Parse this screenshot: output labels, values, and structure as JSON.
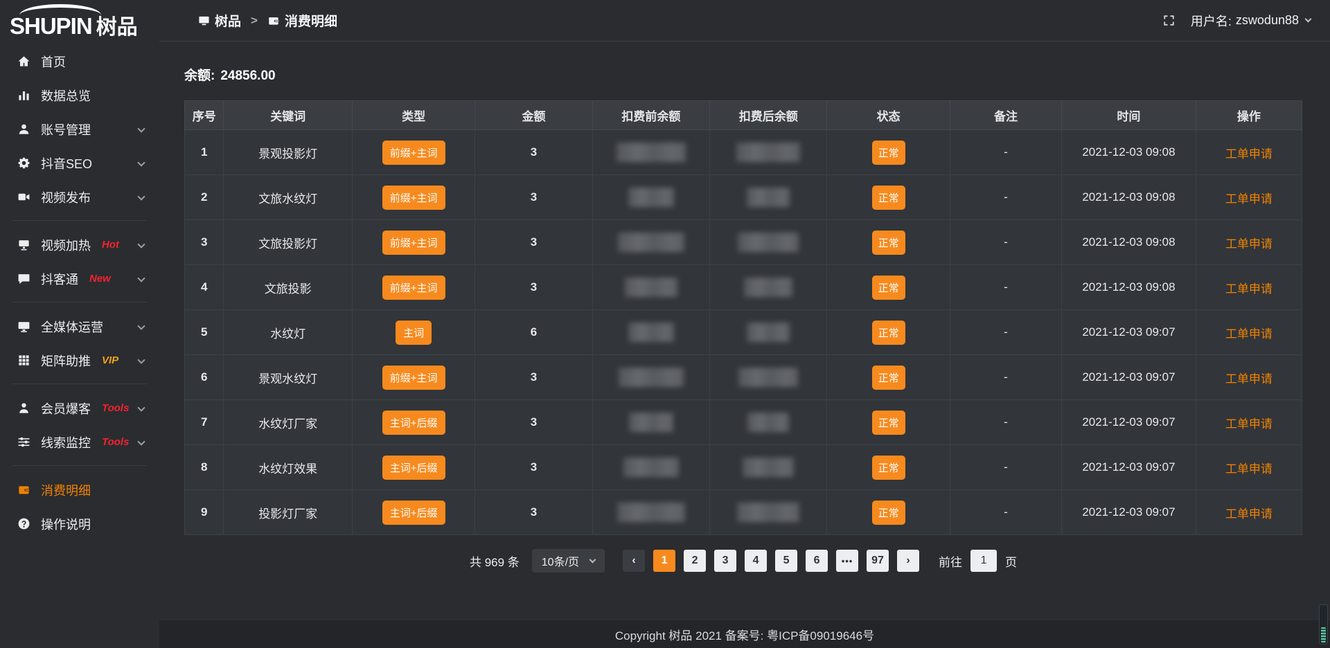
{
  "logo": {
    "text_en": "SHUPIN",
    "text_cn": "树品"
  },
  "header": {
    "breadcrumb": [
      {
        "label": "树品"
      },
      {
        "label": "消费明细"
      }
    ],
    "separator": ">",
    "username_label": "用户名:",
    "username": "zswodun88"
  },
  "sidebar": {
    "items": [
      {
        "id": "home",
        "label": "首页",
        "icon": "home",
        "expandable": false
      },
      {
        "id": "data-overview",
        "label": "数据总览",
        "icon": "chart",
        "expandable": false
      },
      {
        "id": "account-manage",
        "label": "账号管理",
        "icon": "user",
        "expandable": true
      },
      {
        "id": "douyin-seo",
        "label": "抖音SEO",
        "icon": "gear",
        "expandable": true
      },
      {
        "id": "video-publish",
        "label": "视频发布",
        "icon": "video",
        "expandable": true
      },
      {
        "divider": true
      },
      {
        "id": "video-heat",
        "label": "视频加热",
        "icon": "tv",
        "badge": "Hot",
        "badge_color": "#f5222d",
        "expandable": true
      },
      {
        "id": "douketong",
        "label": "抖客通",
        "icon": "chat",
        "badge": "New",
        "badge_color": "#f5222d",
        "expandable": true
      },
      {
        "divider": true
      },
      {
        "id": "all-media",
        "label": "全媒体运营",
        "icon": "monitor",
        "expandable": true
      },
      {
        "id": "matrix-boost",
        "label": "矩阵助推",
        "icon": "grid",
        "badge": "VIP",
        "badge_color": "#efa21d",
        "expandable": true
      },
      {
        "divider": true
      },
      {
        "id": "member-burst",
        "label": "会员爆客",
        "icon": "member",
        "badge": "Tools",
        "badge_color": "#f5222d",
        "expandable": true
      },
      {
        "id": "clue-monitor",
        "label": "线索监控",
        "icon": "sliders",
        "badge": "Tools",
        "badge_color": "#f5222d",
        "expandable": true
      },
      {
        "divider": true
      },
      {
        "id": "consume-detail",
        "label": "消费明细",
        "icon": "wallet",
        "active": true,
        "expandable": false
      },
      {
        "id": "operation-guide",
        "label": "操作说明",
        "icon": "question",
        "expandable": false
      }
    ]
  },
  "balance": {
    "label": "余额:",
    "value": "24856.00"
  },
  "table": {
    "columns": [
      "序号",
      "关键词",
      "类型",
      "金额",
      "扣费前余额",
      "扣费后余额",
      "状态",
      "备注",
      "时间",
      "操作"
    ],
    "rows": [
      {
        "seq": "1",
        "keyword": "景观投影灯",
        "type": "前缀+主词",
        "amount": "3",
        "status": "正常",
        "remark": "-",
        "time": "2021-12-03 09:08",
        "action": "工单申请"
      },
      {
        "seq": "2",
        "keyword": "文旅水纹灯",
        "type": "前缀+主词",
        "amount": "3",
        "status": "正常",
        "remark": "-",
        "time": "2021-12-03 09:08",
        "action": "工单申请"
      },
      {
        "seq": "3",
        "keyword": "文旅投影灯",
        "type": "前缀+主词",
        "amount": "3",
        "status": "正常",
        "remark": "-",
        "time": "2021-12-03 09:08",
        "action": "工单申请"
      },
      {
        "seq": "4",
        "keyword": "文旅投影",
        "type": "前缀+主词",
        "amount": "3",
        "status": "正常",
        "remark": "-",
        "time": "2021-12-03 09:08",
        "action": "工单申请"
      },
      {
        "seq": "5",
        "keyword": "水纹灯",
        "type": "主词",
        "amount": "6",
        "status": "正常",
        "remark": "-",
        "time": "2021-12-03 09:07",
        "action": "工单申请"
      },
      {
        "seq": "6",
        "keyword": "景观水纹灯",
        "type": "前缀+主词",
        "amount": "3",
        "status": "正常",
        "remark": "-",
        "time": "2021-12-03 09:07",
        "action": "工单申请"
      },
      {
        "seq": "7",
        "keyword": "水纹灯厂家",
        "type": "主词+后缀",
        "amount": "3",
        "status": "正常",
        "remark": "-",
        "time": "2021-12-03 09:07",
        "action": "工单申请"
      },
      {
        "seq": "8",
        "keyword": "水纹灯效果",
        "type": "主词+后缀",
        "amount": "3",
        "status": "正常",
        "remark": "-",
        "time": "2021-12-03 09:07",
        "action": "工单申请"
      },
      {
        "seq": "9",
        "keyword": "投影灯厂家",
        "type": "主词+后缀",
        "amount": "3",
        "status": "正常",
        "remark": "-",
        "time": "2021-12-03 09:07",
        "action": "工单申请"
      }
    ]
  },
  "pagination": {
    "total": "共 969 条",
    "page_size": "10条/页",
    "prev_label": "‹",
    "next_label": "›",
    "pages": [
      "1",
      "2",
      "3",
      "4",
      "5",
      "6",
      "•••",
      "97"
    ],
    "active_page": "1",
    "goto_label": "前往",
    "goto_value": "1",
    "goto_suffix": "页"
  },
  "footer": {
    "copyright": "Copyright 树品 2021 备案号: 粤ICP备09019646号"
  },
  "colors": {
    "accent": "#f78a1e",
    "link": "#ef8201",
    "danger": "#f5222d",
    "vip": "#efa21d"
  }
}
